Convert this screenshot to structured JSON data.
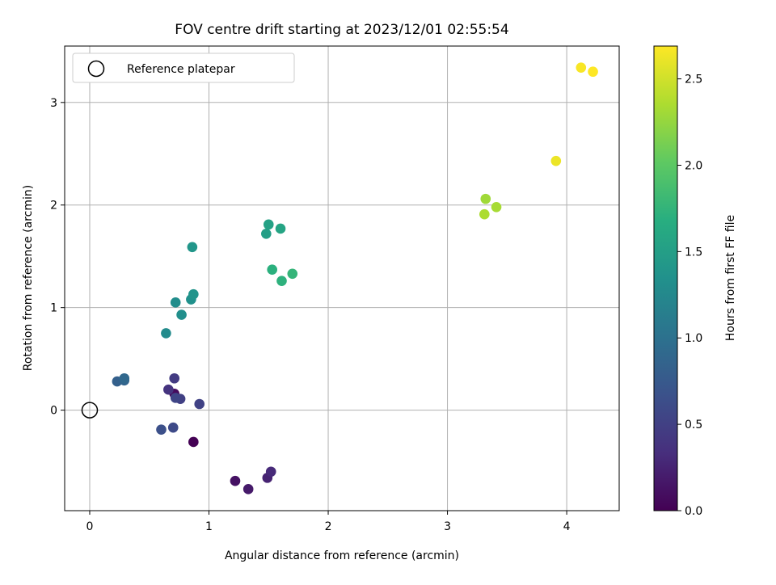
{
  "chart_data": {
    "type": "scatter",
    "title": "FOV centre drift starting at 2023/12/01 02:55:54",
    "xlabel": "Angular distance from reference (arcmin)",
    "ylabel": "Rotation from reference (arcmin)",
    "xlim": [
      -0.21,
      4.44
    ],
    "ylim": [
      -0.98,
      3.55
    ],
    "xticks": [
      0,
      1,
      2,
      3,
      4
    ],
    "yticks": [
      0,
      1,
      2,
      3
    ],
    "grid": true,
    "legend": {
      "placement": "top-left",
      "entries": [
        "Reference platepar"
      ]
    },
    "reference_point": {
      "x": 0,
      "y": 0,
      "label": "Reference platepar"
    },
    "colorbar": {
      "label": "Hours from first FF file",
      "colormap": "viridis",
      "range": [
        0.0,
        2.69
      ],
      "ticks": [
        "0.0",
        "0.5",
        "1.0",
        "1.5",
        "2.0",
        "2.5"
      ]
    },
    "points": [
      {
        "x": 0.87,
        "y": -0.31,
        "hours": 0.0
      },
      {
        "x": 0.71,
        "y": 0.16,
        "hours": 0.07
      },
      {
        "x": 1.22,
        "y": -0.69,
        "hours": 0.12
      },
      {
        "x": 1.33,
        "y": -0.77,
        "hours": 0.18
      },
      {
        "x": 1.49,
        "y": -0.66,
        "hours": 0.25
      },
      {
        "x": 1.52,
        "y": -0.6,
        "hours": 0.3
      },
      {
        "x": 0.66,
        "y": 0.2,
        "hours": 0.38
      },
      {
        "x": 0.71,
        "y": 0.31,
        "hours": 0.45
      },
      {
        "x": 0.76,
        "y": 0.11,
        "hours": 0.5
      },
      {
        "x": 0.92,
        "y": 0.06,
        "hours": 0.52
      },
      {
        "x": 0.72,
        "y": 0.12,
        "hours": 0.55
      },
      {
        "x": 0.7,
        "y": -0.17,
        "hours": 0.6
      },
      {
        "x": 0.6,
        "y": -0.19,
        "hours": 0.65
      },
      {
        "x": 0.23,
        "y": 0.28,
        "hours": 0.82
      },
      {
        "x": 0.29,
        "y": 0.29,
        "hours": 0.86
      },
      {
        "x": 0.29,
        "y": 0.31,
        "hours": 0.9
      },
      {
        "x": 0.64,
        "y": 0.75,
        "hours": 1.28
      },
      {
        "x": 0.72,
        "y": 1.05,
        "hours": 1.3
      },
      {
        "x": 0.77,
        "y": 0.93,
        "hours": 1.32
      },
      {
        "x": 0.85,
        "y": 1.08,
        "hours": 1.35
      },
      {
        "x": 0.87,
        "y": 1.13,
        "hours": 1.38
      },
      {
        "x": 0.86,
        "y": 1.59,
        "hours": 1.4
      },
      {
        "x": 1.48,
        "y": 1.72,
        "hours": 1.5
      },
      {
        "x": 1.5,
        "y": 1.81,
        "hours": 1.53
      },
      {
        "x": 1.6,
        "y": 1.77,
        "hours": 1.57
      },
      {
        "x": 1.53,
        "y": 1.37,
        "hours": 1.7
      },
      {
        "x": 1.61,
        "y": 1.26,
        "hours": 1.72
      },
      {
        "x": 1.7,
        "y": 1.33,
        "hours": 1.76
      },
      {
        "x": 3.32,
        "y": 2.06,
        "hours": 2.3
      },
      {
        "x": 3.41,
        "y": 1.98,
        "hours": 2.33
      },
      {
        "x": 3.31,
        "y": 1.91,
        "hours": 2.35
      },
      {
        "x": 3.91,
        "y": 2.43,
        "hours": 2.62
      },
      {
        "x": 4.12,
        "y": 3.34,
        "hours": 2.67
      },
      {
        "x": 4.22,
        "y": 3.3,
        "hours": 2.69
      }
    ]
  }
}
